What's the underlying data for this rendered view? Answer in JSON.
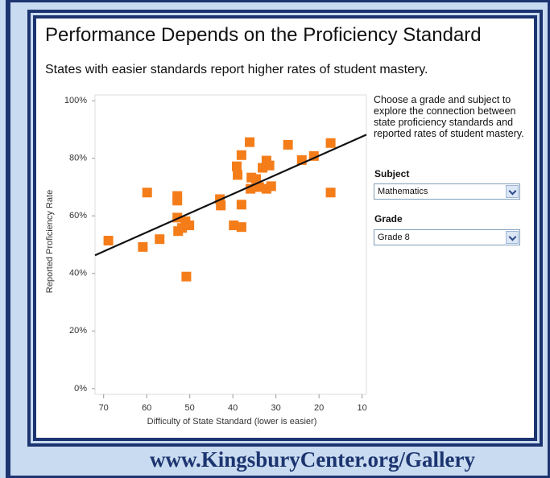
{
  "ui": {
    "intro": "Choose a grade and subject to explore the connection between state proficiency standards and reported rates of student mastery.",
    "subject_label": "Subject",
    "subject_value": "Mathematics",
    "grade_label": "Grade",
    "grade_value": "Grade 8",
    "footer": "www.KingsburyCenter.org/Gallery"
  },
  "chart_data": {
    "type": "scatter",
    "title": "Performance Depends on the Proficiency Standard",
    "subtitle": "States with easier standards report higher rates of student mastery.",
    "x_label": "Difficulty of State Standard (lower is easier)",
    "y_label": "Reported Proficiency Rate",
    "x": [
      68.9,
      60.9,
      59.9,
      57.0,
      52.9,
      52.9,
      52.9,
      52.7,
      51.8,
      51.0,
      50.1,
      50.8,
      43.0,
      42.8,
      39.8,
      38.0,
      39.1,
      38.9,
      38.0,
      38.0,
      36.1,
      35.7,
      35.9,
      34.6,
      33.9,
      33.1,
      32.2,
      31.5,
      32.2,
      31.1,
      27.2,
      24.0,
      21.2,
      17.3,
      17.3
    ],
    "values": [
      51.4,
      49.2,
      68.1,
      51.9,
      66.9,
      65.3,
      59.4,
      54.7,
      55.8,
      58.1,
      56.7,
      38.9,
      65.8,
      63.6,
      56.7,
      56.1,
      77.2,
      74.2,
      81.1,
      63.9,
      85.6,
      73.3,
      69.4,
      72.8,
      70.0,
      76.7,
      79.2,
      77.5,
      69.4,
      70.3,
      84.7,
      79.4,
      80.8,
      85.3,
      68.1
    ],
    "color": "#f47d1a",
    "trendline": {
      "x": [
        72,
        9
      ],
      "values": [
        46.3,
        88.2
      ],
      "color": "#111111"
    },
    "xlim": [
      72,
      9
    ],
    "xticks": [
      70,
      60,
      50,
      40,
      30,
      20,
      10
    ],
    "ylim": [
      -2,
      102
    ],
    "yticks": [
      {
        "value": 0,
        "label": "0%"
      },
      {
        "value": 20,
        "label": "20%"
      },
      {
        "value": 40,
        "label": "40%"
      },
      {
        "value": 60,
        "label": "60%"
      },
      {
        "value": 80,
        "label": "80%"
      },
      {
        "value": 100,
        "label": "100%"
      }
    ],
    "grid": false
  }
}
